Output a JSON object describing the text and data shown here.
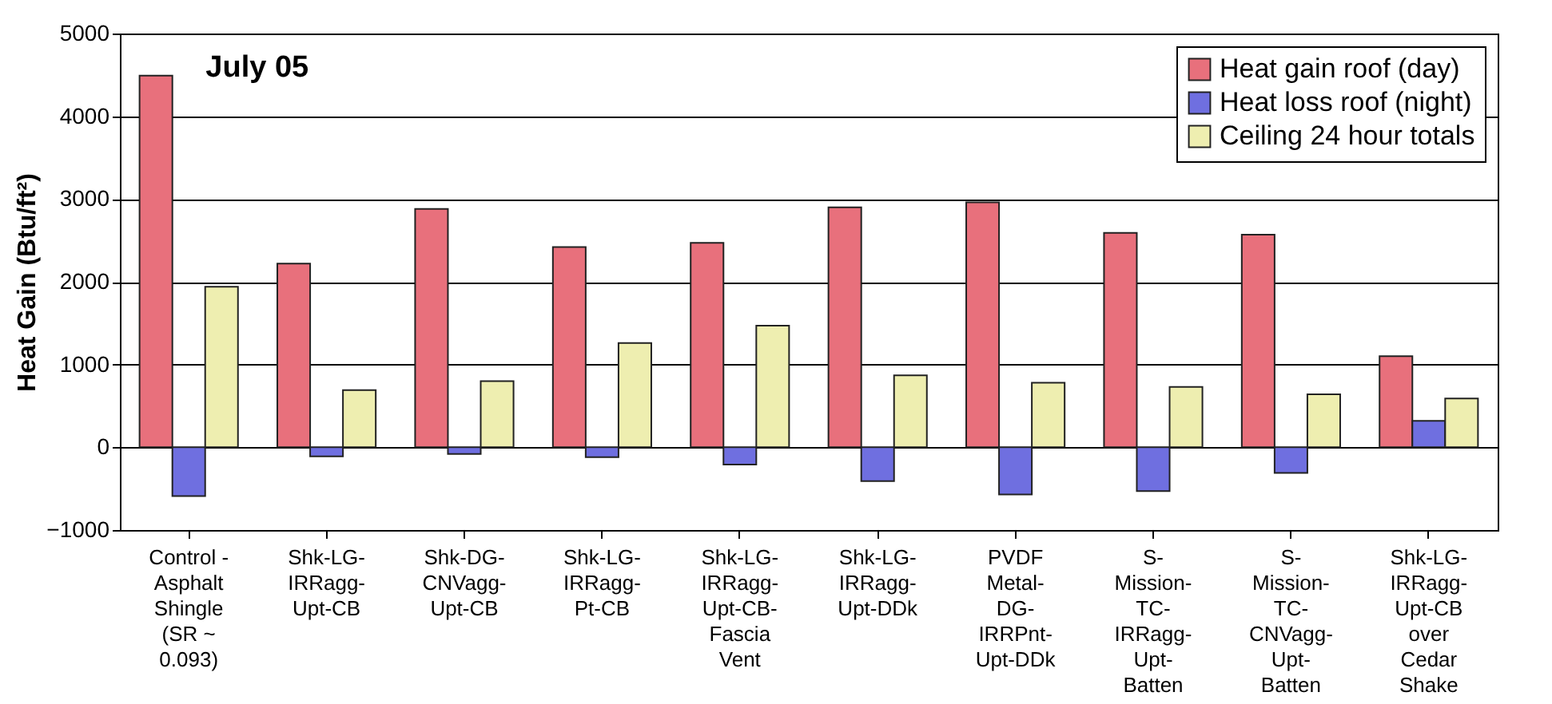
{
  "chart_data": {
    "type": "bar",
    "title": "July 05",
    "ylabel": "Heat Gain (Btu/ft²)",
    "categories": [
      "Control -\nAsphalt\nShingle\n(SR ~\n0.093)",
      "Shk-LG-\nIRRagg-\nUpt-CB",
      "Shk-DG-\nCNVagg-\nUpt-CB",
      "Shk-LG-\nIRRagg-\nPt-CB",
      "Shk-LG-\nIRRagg-\nUpt-CB-\nFascia\nVent",
      "Shk-LG-\nIRRagg-\nUpt-DDk",
      "PVDF\nMetal-\nDG-\nIRRPnt-\nUpt-DDk",
      "S-\nMission-\nTC-\nIRRagg-\nUpt-\nBatten",
      "S-\nMission-\nTC-\nCNVagg-\nUpt-\nBatten",
      "Shk-LG-\nIRRagg-\nUpt-CB\nover\nCedar\nShake"
    ],
    "series": [
      {
        "name": "Heat gain roof (day)",
        "color": "#e8707c",
        "values": [
          4490,
          2220,
          2880,
          2420,
          2470,
          2900,
          2960,
          2590,
          2570,
          1100
        ]
      },
      {
        "name": "Heat loss roof (night)",
        "color": "#6f6fe0",
        "values": [
          -590,
          -110,
          -80,
          -120,
          -210,
          -410,
          -570,
          -530,
          -310,
          320
        ]
      },
      {
        "name": "Ceiling 24 hour totals",
        "color": "#eeeeb0",
        "values": [
          1940,
          690,
          800,
          1260,
          1470,
          870,
          780,
          730,
          640,
          590
        ]
      }
    ],
    "ylim": [
      -1000,
      5000
    ],
    "yticks": [
      -1000,
      0,
      1000,
      2000,
      3000,
      4000,
      5000
    ],
    "grid": "y",
    "legend": "top right"
  }
}
